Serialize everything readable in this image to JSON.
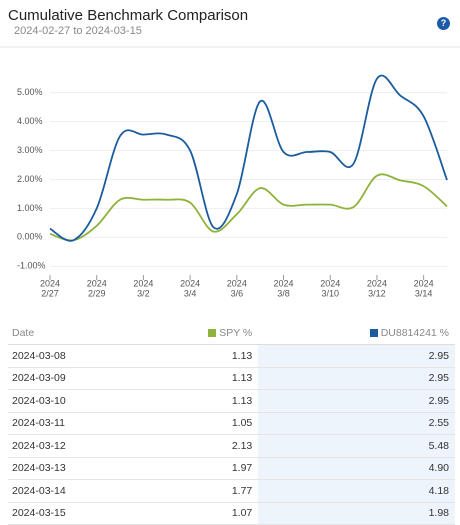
{
  "chart_data": {
    "type": "line",
    "title": "Cumulative Benchmark Comparison",
    "subtitle": "2024-02-27 to 2024-03-15",
    "x": [
      "2024-02-27",
      "2024-02-28",
      "2024-02-29",
      "2024-03-01",
      "2024-03-02",
      "2024-03-03",
      "2024-03-04",
      "2024-03-05",
      "2024-03-06",
      "2024-03-07",
      "2024-03-08",
      "2024-03-09",
      "2024-03-10",
      "2024-03-11",
      "2024-03-12",
      "2024-03-13",
      "2024-03-14",
      "2024-03-15"
    ],
    "xlim": [
      "2024-02-27",
      "2024-03-15"
    ],
    "xticks": [
      {
        "value": "2024-02-27",
        "label": [
          "2024",
          "2/27"
        ]
      },
      {
        "value": "2024-02-29",
        "label": [
          "2024",
          "2/29"
        ]
      },
      {
        "value": "2024-03-02",
        "label": [
          "2024",
          "3/2"
        ]
      },
      {
        "value": "2024-03-04",
        "label": [
          "2024",
          "3/4"
        ]
      },
      {
        "value": "2024-03-06",
        "label": [
          "2024",
          "3/6"
        ]
      },
      {
        "value": "2024-03-08",
        "label": [
          "2024",
          "3/8"
        ]
      },
      {
        "value": "2024-03-10",
        "label": [
          "2024",
          "3/10"
        ]
      },
      {
        "value": "2024-03-12",
        "label": [
          "2024",
          "3/12"
        ]
      },
      {
        "value": "2024-03-14",
        "label": [
          "2024",
          "3/14"
        ]
      }
    ],
    "ylim": [
      -1.3,
      6.3
    ],
    "yticks": [
      {
        "value": 5,
        "label": "5.00%"
      },
      {
        "value": 4,
        "label": "4.00%"
      },
      {
        "value": 3,
        "label": "3.00%"
      },
      {
        "value": 2,
        "label": "2.00%"
      },
      {
        "value": 1,
        "label": "1.00%"
      },
      {
        "value": 0,
        "label": "0.00%"
      },
      {
        "value": -1,
        "label": "-1.00%"
      }
    ],
    "grid": true,
    "series": [
      {
        "name": "SPY %",
        "color": "#8db33a",
        "values": [
          0.12,
          -0.1,
          0.4,
          1.3,
          1.3,
          1.3,
          1.2,
          0.2,
          0.8,
          1.7,
          1.13,
          1.13,
          1.13,
          1.05,
          2.13,
          1.97,
          1.77,
          1.07
        ]
      },
      {
        "name": "DU8814241 %",
        "color": "#1b5c9e",
        "values": [
          0.3,
          -0.1,
          1.0,
          3.5,
          3.55,
          3.55,
          3.0,
          0.35,
          1.5,
          4.7,
          2.95,
          2.95,
          2.95,
          2.55,
          5.48,
          4.9,
          4.18,
          1.98
        ]
      }
    ]
  },
  "help": "?",
  "table": {
    "header": [
      "Date",
      "SPY %",
      "DU8814241 %"
    ],
    "rows": [
      [
        "2024-03-08",
        "1.13",
        "2.95"
      ],
      [
        "2024-03-09",
        "1.13",
        "2.95"
      ],
      [
        "2024-03-10",
        "1.13",
        "2.95"
      ],
      [
        "2024-03-11",
        "1.05",
        "2.55"
      ],
      [
        "2024-03-12",
        "2.13",
        "5.48"
      ],
      [
        "2024-03-13",
        "1.97",
        "4.90"
      ],
      [
        "2024-03-14",
        "1.77",
        "4.18"
      ],
      [
        "2024-03-15",
        "1.07",
        "1.98"
      ]
    ]
  }
}
